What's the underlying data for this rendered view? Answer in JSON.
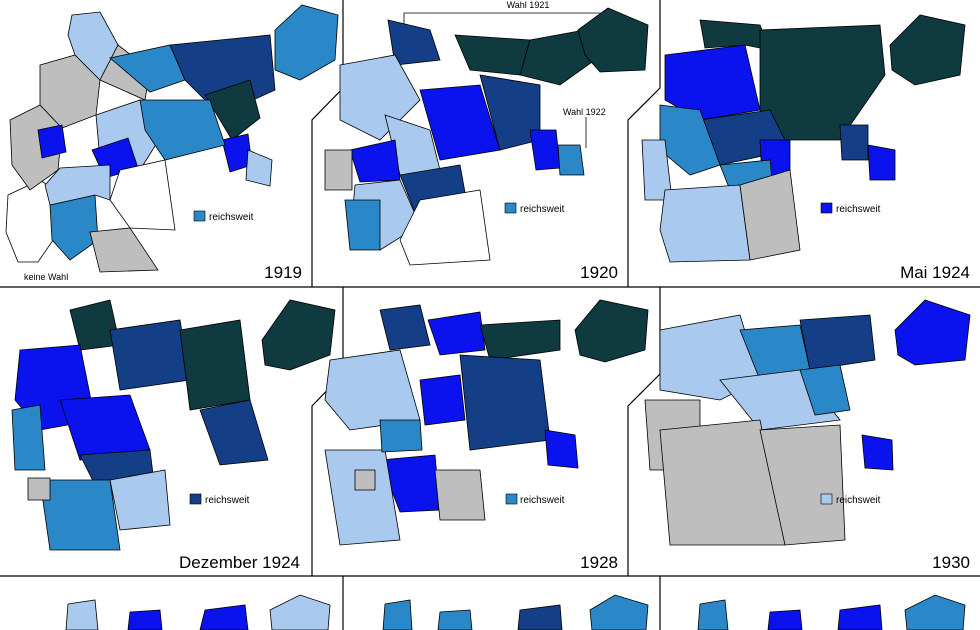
{
  "colors": {
    "background": "#ffffff",
    "border": "#000000",
    "white": "#ffffff",
    "gray": "#bebebe",
    "light_blue": "#a9c9ee",
    "mid_blue": "#2a88c8",
    "bright_blue": "#0a12ee",
    "dark_blue": "#143f86",
    "very_dark": "#0f3a3f"
  },
  "panels": [
    {
      "year": "1919",
      "legend_label": "reichsweit",
      "legend_color": "#2a88c8",
      "note": "keine Wahl"
    },
    {
      "year": "1920",
      "legend_label": "reichsweit",
      "legend_color": "#2a88c8",
      "annotation_top": "Wahl 1921",
      "annotation_right": "Wahl 1922"
    },
    {
      "year": "Mai 1924",
      "legend_label": "reichsweit",
      "legend_color": "#0a12ee"
    },
    {
      "year": "Dezember 1924",
      "legend_label": "reichsweit",
      "legend_color": "#143f86"
    },
    {
      "year": "1928",
      "legend_label": "reichsweit",
      "legend_color": "#2a88c8"
    },
    {
      "year": "1930",
      "legend_label": "reichsweit",
      "legend_color": "#a9c9ee"
    }
  ]
}
